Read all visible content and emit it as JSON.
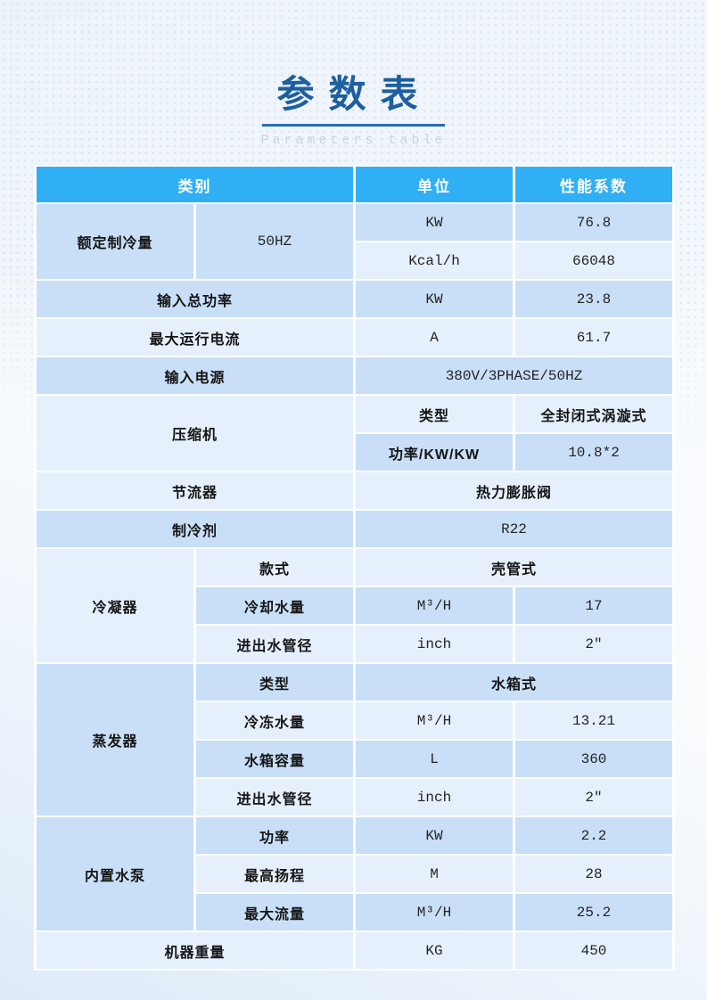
{
  "page": {
    "title": "参数表",
    "subtitle": "Parameters table"
  },
  "colors": {
    "header_bg": "#30AFF5",
    "row_medium": "#C8DFF7",
    "row_light": "#E6F0FC",
    "title_blue": "#1D5F9F",
    "underline_blue": "#2A6CB3",
    "header_text": "#FFFFFF",
    "body_text": "#151515"
  },
  "table": {
    "header": {
      "category": "类别",
      "unit": "单位",
      "coefficient": "性能系数"
    },
    "rows": [
      [
        "额定制冷量",
        "50HZ",
        "KW",
        "76.8"
      ],
      [
        "Kcal/h",
        "66048"
      ],
      [
        "输入总功率",
        "KW",
        "23.8"
      ],
      [
        "最大运行电流",
        "A",
        "61.7"
      ],
      [
        "输入电源",
        "380V/3PHASE/50HZ"
      ],
      [
        "压缩机",
        "类型",
        "全封闭式涡漩式"
      ],
      [
        "功率/KW/KW",
        "10.8*2"
      ],
      [
        "节流器",
        "热力膨胀阀"
      ],
      [
        "制冷剂",
        "R22"
      ],
      [
        "冷凝器",
        "款式",
        "壳管式"
      ],
      [
        "冷却水量",
        "M³/H",
        "17"
      ],
      [
        "进出水管径",
        "inch",
        "2″"
      ],
      [
        "蒸发器",
        "类型",
        "水箱式"
      ],
      [
        "冷冻水量",
        "M³/H",
        "13.21"
      ],
      [
        "水箱容量",
        "L",
        "360"
      ],
      [
        "进出水管径",
        "inch",
        "2″"
      ],
      [
        "内置水泵",
        "功率",
        "KW",
        "2.2"
      ],
      [
        "最高扬程",
        "M",
        "28"
      ],
      [
        "最大流量",
        "M³/H",
        "25.2"
      ],
      [
        "机器重量",
        "KG",
        "450"
      ]
    ]
  }
}
